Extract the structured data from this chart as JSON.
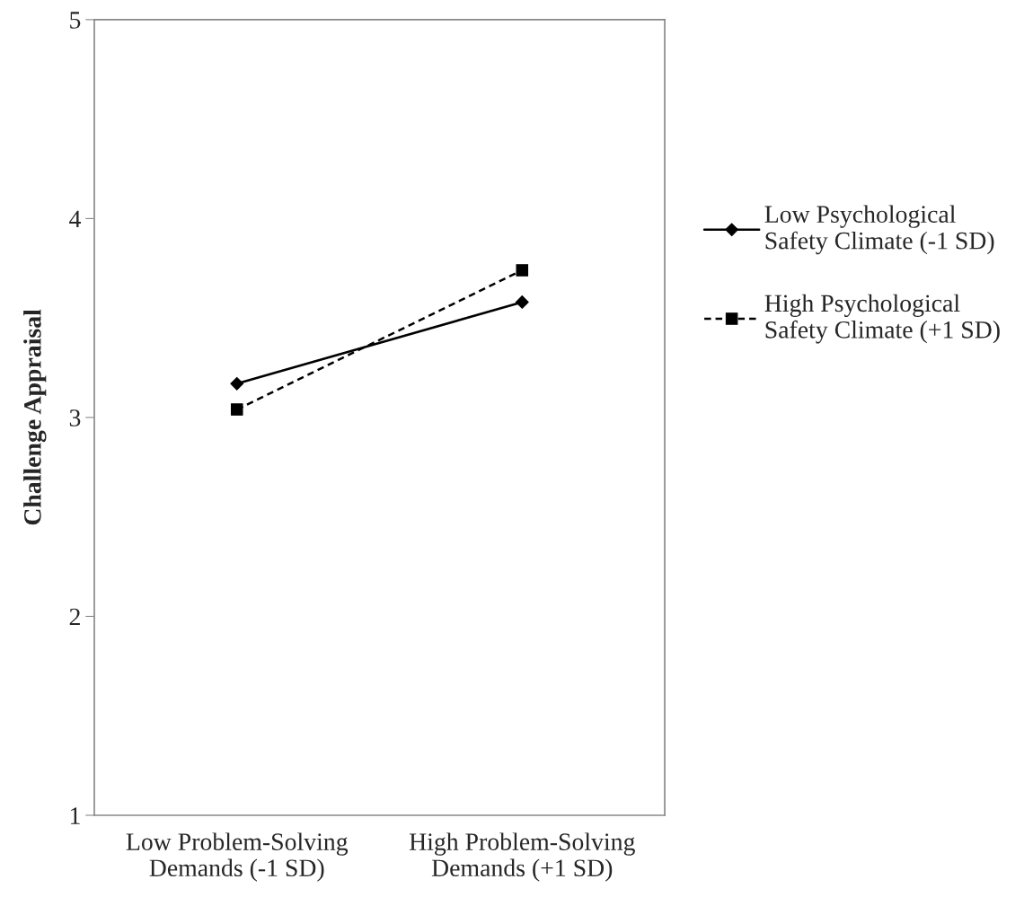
{
  "chart_data": {
    "type": "line",
    "ylabel": "Challenge Appraisal",
    "categories": [
      "Low Problem-Solving\nDemands (-1 SD)",
      "High Problem-Solving\nDemands (+1 SD)"
    ],
    "series": [
      {
        "name": "Low Psychological\nSafety Climate (-1 SD)",
        "color": "#000000",
        "values": [
          3.17,
          3.58
        ],
        "marker": "diamond",
        "line_style": "solid"
      },
      {
        "name": "High Psychological\nSafety Climate (+1 SD)",
        "color": "#000000",
        "values": [
          3.04,
          3.74
        ],
        "marker": "square",
        "line_style": "dashed"
      }
    ],
    "ylim": [
      1,
      5
    ],
    "yticks": [
      1,
      2,
      3,
      4,
      5
    ],
    "grid": false,
    "legend": "right"
  }
}
